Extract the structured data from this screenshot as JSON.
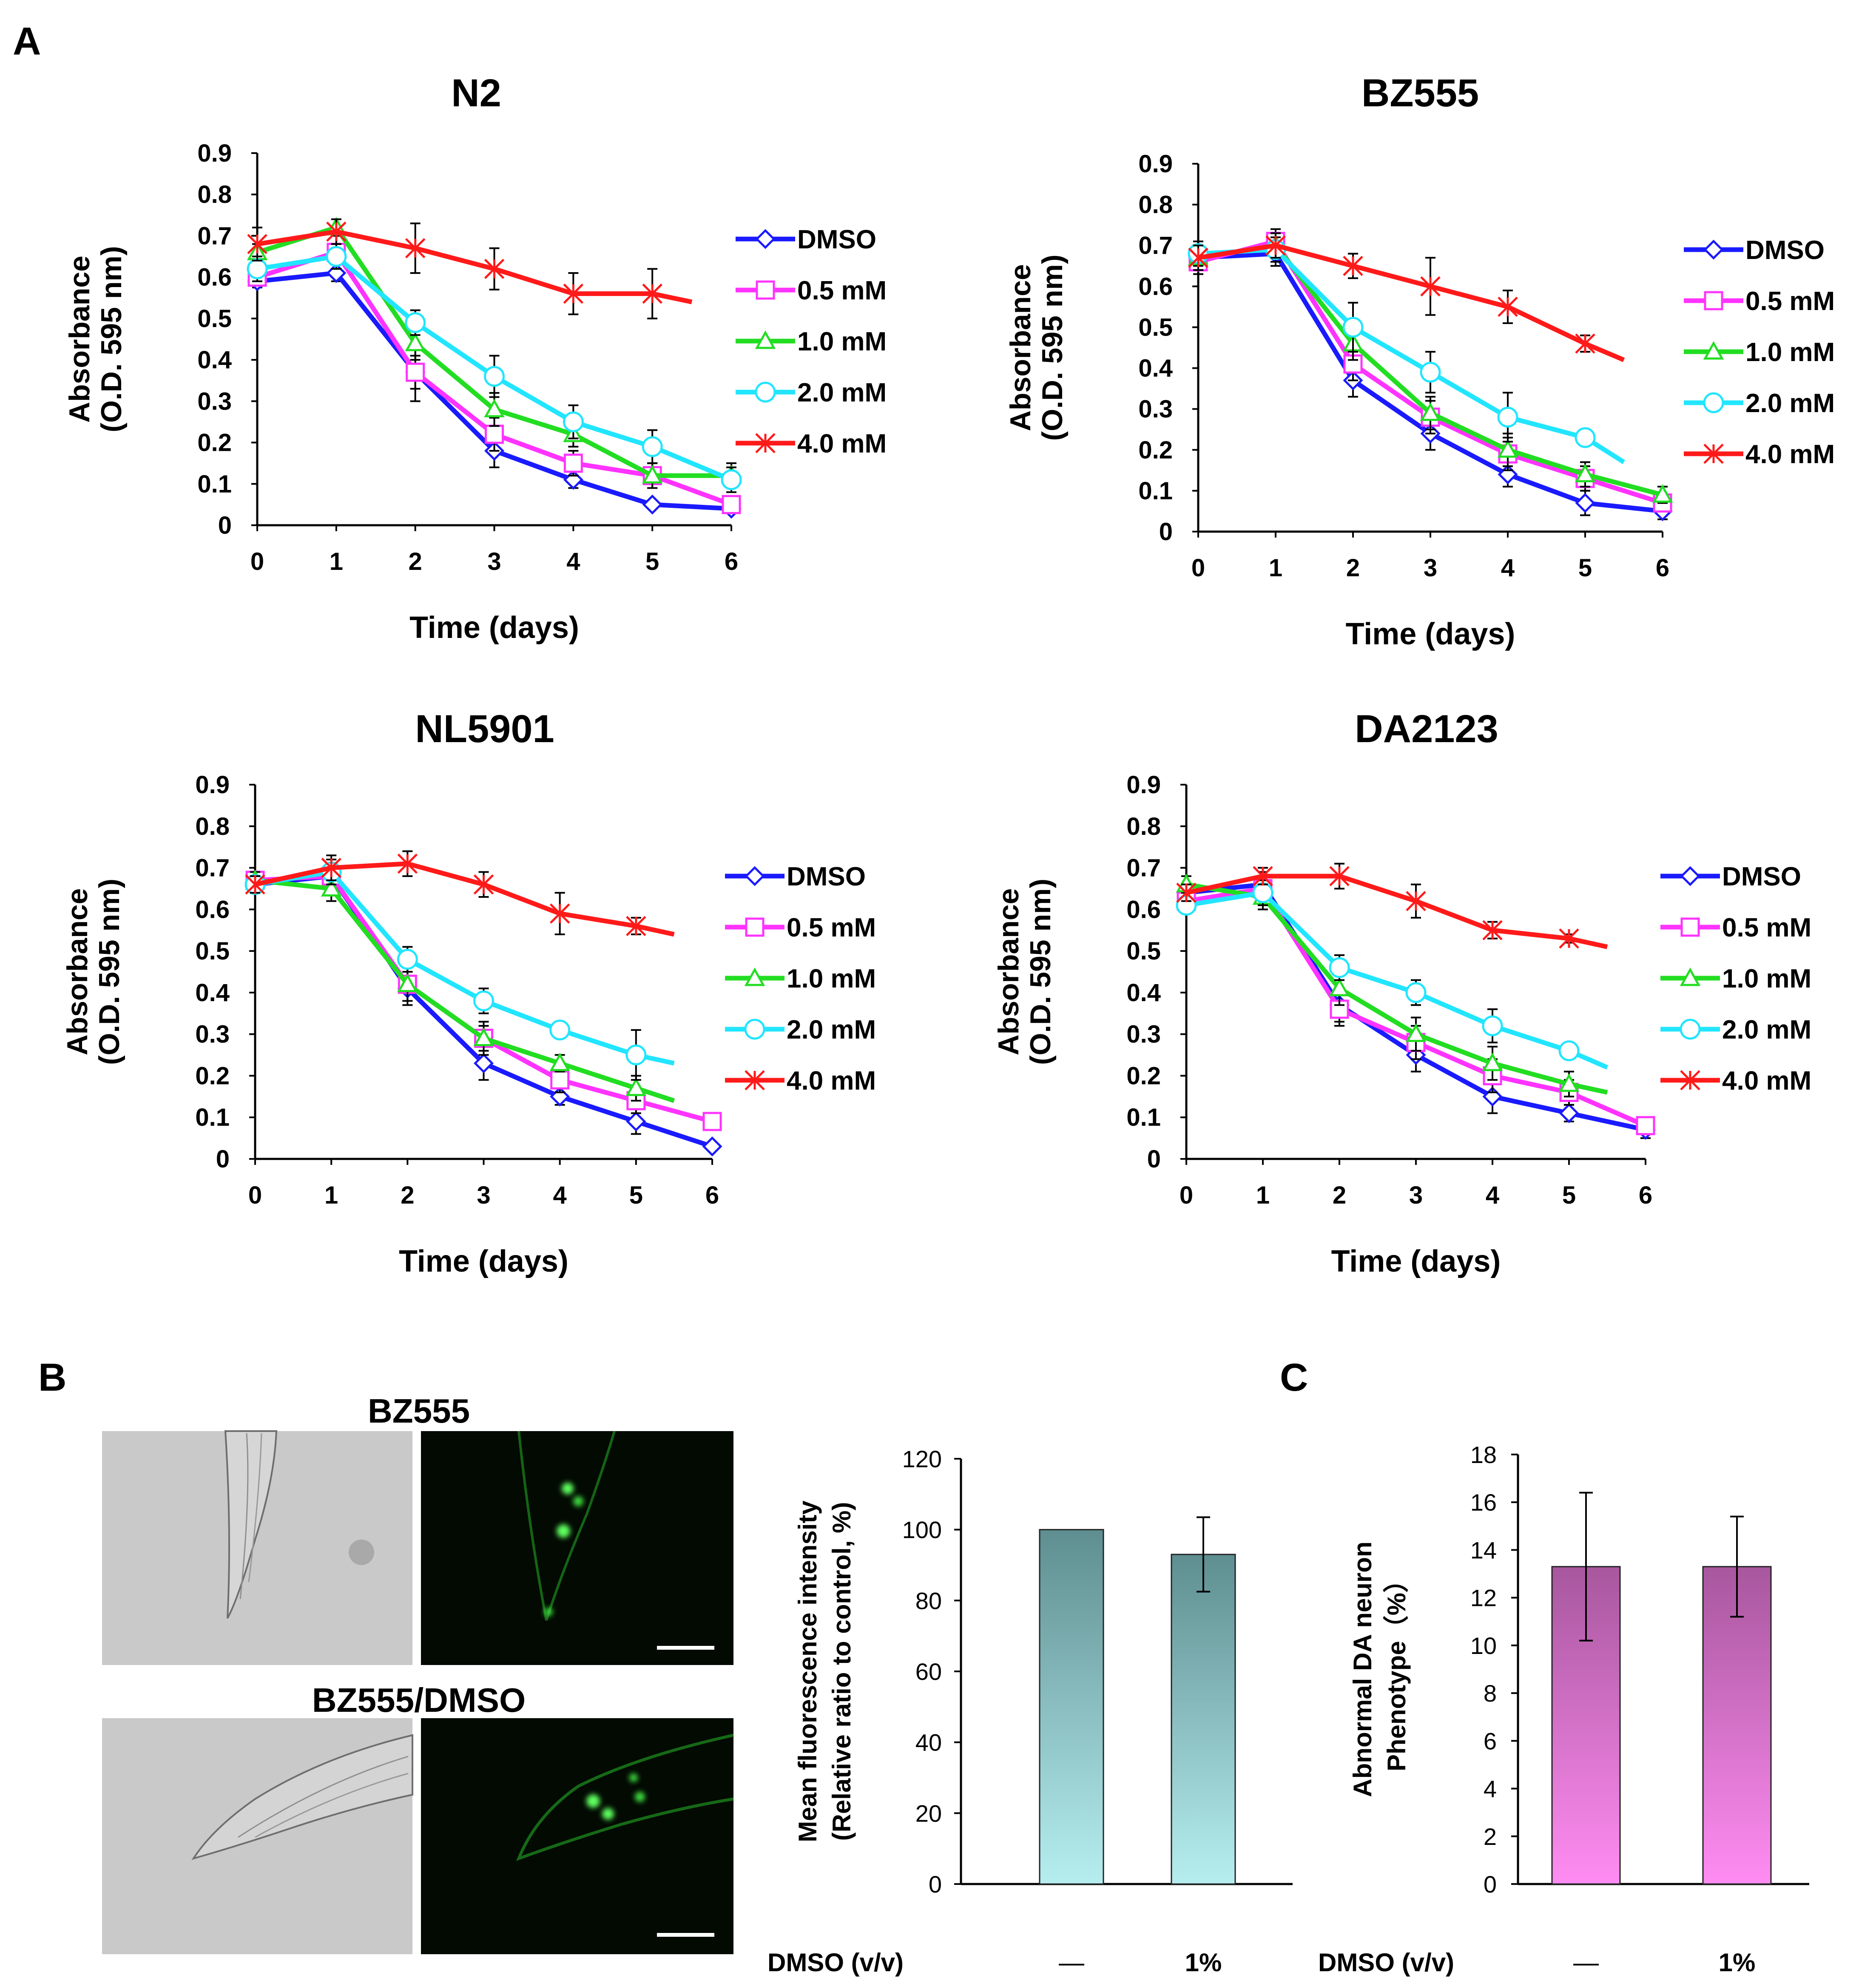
{
  "panel_labels": {
    "a": "A",
    "b": "B",
    "c": "C"
  },
  "colors": {
    "DMSO": "#1a1aff",
    "0.5 mM": "#ff33ff",
    "1.0 mM": "#22dd22",
    "2.0 mM": "#22e5ff",
    "4.0 mM": "#ff1a1a",
    "bar_b_top": "#5e8e90",
    "bar_b_bottom": "#b6eef0",
    "bar_c_top": "#a8579e",
    "bar_c_bottom": "#ff8cf2"
  },
  "chart_data": [
    {
      "id": "N2",
      "type": "line",
      "title": "N2",
      "xlabel": "Time (days)",
      "ylabel": [
        "Absorbance",
        "(O.D. 595 nm)"
      ],
      "ylim": [
        0,
        0.9
      ],
      "yticks": [
        "0",
        "0.1",
        "0.2",
        "0.3",
        "0.4",
        "0.5",
        "0.6",
        "0.7",
        "0.8",
        "0.9"
      ],
      "x": [
        0,
        1,
        2,
        3,
        4,
        5,
        6
      ],
      "series": [
        {
          "name": "DMSO",
          "marker": "diamond",
          "x": [
            0,
            1,
            2,
            3,
            4,
            5,
            6
          ],
          "values": [
            0.59,
            0.61,
            0.37,
            0.18,
            0.11,
            0.05,
            0.04
          ],
          "errors": [
            0.015,
            0.02,
            0.04,
            0.04,
            0.02,
            0.01,
            0.01
          ]
        },
        {
          "name": "0.5 mM",
          "marker": "square",
          "x": [
            0,
            1,
            2,
            3,
            4,
            5,
            6
          ],
          "values": [
            0.6,
            0.66,
            0.37,
            0.22,
            0.15,
            0.12,
            0.05
          ],
          "errors": [
            0.02,
            0.02,
            0.07,
            0.04,
            0.03,
            0.03,
            0.02
          ]
        },
        {
          "name": "1.0 mM",
          "marker": "triangle",
          "x": [
            0,
            1,
            2,
            3,
            4,
            5,
            6
          ],
          "values": [
            0.66,
            0.72,
            0.44,
            0.28,
            0.22,
            0.12,
            0.12
          ],
          "errors": [
            0.02,
            0.02,
            0.04,
            0.04,
            0.03,
            0.03,
            0.03
          ]
        },
        {
          "name": "2.0 mM",
          "marker": "circle",
          "x": [
            0,
            1,
            2,
            3,
            4,
            5,
            6
          ],
          "values": [
            0.62,
            0.65,
            0.49,
            0.36,
            0.25,
            0.19,
            0.11
          ],
          "errors": [
            0.03,
            0.03,
            0.03,
            0.05,
            0.04,
            0.04,
            0.03
          ]
        },
        {
          "name": "4.0 mM",
          "marker": "star",
          "x": [
            0,
            1,
            2,
            3,
            4,
            5,
            5.5
          ],
          "values": [
            0.68,
            0.71,
            0.67,
            0.62,
            0.56,
            0.56,
            0.54
          ],
          "errors": [
            0.04,
            0.03,
            0.06,
            0.05,
            0.05,
            0.06,
            null
          ]
        }
      ]
    },
    {
      "id": "BZ555",
      "type": "line",
      "title": "BZ555",
      "xlabel": "Time (days)",
      "ylabel": [
        "Absorbance",
        "(O.D. 595 nm)"
      ],
      "ylim": [
        0,
        0.9
      ],
      "yticks": [
        "0",
        "0.1",
        "0.2",
        "0.3",
        "0.4",
        "0.5",
        "0.6",
        "0.7",
        "0.8",
        "0.9"
      ],
      "x": [
        0,
        1,
        2,
        3,
        4,
        5,
        6
      ],
      "series": [
        {
          "name": "DMSO",
          "marker": "diamond",
          "x": [
            0,
            1,
            2,
            3,
            4,
            5,
            6
          ],
          "values": [
            0.67,
            0.68,
            0.37,
            0.24,
            0.14,
            0.07,
            0.05
          ],
          "errors": [
            0.03,
            0.03,
            0.04,
            0.04,
            0.03,
            0.03,
            0.02
          ]
        },
        {
          "name": "0.5 mM",
          "marker": "square",
          "x": [
            0,
            1,
            2,
            3,
            4,
            5,
            6
          ],
          "values": [
            0.66,
            0.71,
            0.41,
            0.28,
            0.19,
            0.13,
            0.07
          ],
          "errors": [
            0.03,
            0.03,
            0.04,
            0.04,
            0.04,
            0.03,
            0.02
          ]
        },
        {
          "name": "1.0 mM",
          "marker": "triangle",
          "x": [
            0,
            1,
            2,
            3,
            4,
            5,
            6
          ],
          "values": [
            0.67,
            0.7,
            0.46,
            0.29,
            0.2,
            0.14,
            0.09
          ],
          "errors": [
            0.03,
            0.03,
            0.04,
            0.04,
            0.04,
            0.03,
            0.02
          ]
        },
        {
          "name": "2.0 mM",
          "marker": "circle",
          "x": [
            0,
            1,
            2,
            3,
            4,
            5,
            5.5
          ],
          "values": [
            0.68,
            0.69,
            0.5,
            0.39,
            0.28,
            0.23,
            0.17
          ],
          "errors": [
            0.03,
            0.03,
            0.06,
            0.05,
            0.06,
            0.02,
            null
          ]
        },
        {
          "name": "4.0 mM",
          "marker": "star",
          "x": [
            0,
            1,
            2,
            3,
            4,
            5,
            5.5
          ],
          "values": [
            0.67,
            0.7,
            0.65,
            0.6,
            0.55,
            0.46,
            0.42
          ],
          "errors": [
            0.03,
            0.03,
            0.03,
            0.07,
            0.04,
            0.02,
            null
          ]
        }
      ]
    },
    {
      "id": "NL5901",
      "type": "line",
      "title": "NL5901",
      "xlabel": "Time (days)",
      "ylabel": [
        "Absorbance",
        "(O.D. 595 nm)"
      ],
      "ylim": [
        0,
        0.9
      ],
      "yticks": [
        "0",
        "0.1",
        "0.2",
        "0.3",
        "0.4",
        "0.5",
        "0.6",
        "0.7",
        "0.8",
        "0.9"
      ],
      "x": [
        0,
        1,
        2,
        3,
        4,
        5,
        6
      ],
      "series": [
        {
          "name": "DMSO",
          "marker": "diamond",
          "x": [
            0,
            1,
            2,
            3,
            4,
            5,
            6
          ],
          "values": [
            0.66,
            0.68,
            0.41,
            0.23,
            0.15,
            0.09,
            0.03
          ],
          "errors": [
            0.02,
            0.03,
            0.04,
            0.04,
            0.02,
            0.03,
            0.01
          ]
        },
        {
          "name": "0.5 mM",
          "marker": "square",
          "x": [
            0,
            1,
            2,
            3,
            4,
            5,
            6
          ],
          "values": [
            0.67,
            0.68,
            0.42,
            0.29,
            0.19,
            0.14,
            0.09
          ],
          "errors": [
            0.02,
            0.03,
            0.04,
            0.04,
            0.03,
            0.03,
            0.02
          ]
        },
        {
          "name": "1.0 mM",
          "marker": "triangle",
          "x": [
            0,
            1,
            2,
            3,
            4,
            5,
            5.5
          ],
          "values": [
            0.67,
            0.65,
            0.42,
            0.29,
            0.23,
            0.17,
            0.14
          ],
          "errors": [
            0.02,
            0.03,
            0.04,
            0.03,
            0.02,
            0.03,
            null
          ]
        },
        {
          "name": "2.0 mM",
          "marker": "circle",
          "x": [
            0,
            1,
            2,
            3,
            4,
            5,
            5.5
          ],
          "values": [
            0.66,
            0.69,
            0.48,
            0.38,
            0.31,
            0.25,
            0.23
          ],
          "errors": [
            0.02,
            0.03,
            0.03,
            0.03,
            0.02,
            0.06,
            null
          ]
        },
        {
          "name": "4.0 mM",
          "marker": "star",
          "x": [
            0,
            1,
            2,
            3,
            4,
            5,
            5.5
          ],
          "values": [
            0.66,
            0.7,
            0.71,
            0.66,
            0.59,
            0.56,
            0.54
          ],
          "errors": [
            0.02,
            0.03,
            0.03,
            0.03,
            0.05,
            0.02,
            null
          ]
        }
      ]
    },
    {
      "id": "DA2123",
      "type": "line",
      "title": "DA2123",
      "xlabel": "Time (days)",
      "ylabel": [
        "Absorbance",
        "(O.D. 595 nm)"
      ],
      "ylim": [
        0,
        0.9
      ],
      "yticks": [
        "0",
        "0.1",
        "0.2",
        "0.3",
        "0.4",
        "0.5",
        "0.6",
        "0.7",
        "0.8",
        "0.9"
      ],
      "x": [
        0,
        1,
        2,
        3,
        4,
        5,
        6
      ],
      "series": [
        {
          "name": "DMSO",
          "marker": "diamond",
          "x": [
            0,
            1,
            2,
            3,
            4,
            5,
            6
          ],
          "values": [
            0.64,
            0.66,
            0.37,
            0.25,
            0.15,
            0.11,
            0.07
          ],
          "errors": [
            0.02,
            0.03,
            0.04,
            0.04,
            0.04,
            0.02,
            0.02
          ]
        },
        {
          "name": "0.5 mM",
          "marker": "square",
          "x": [
            0,
            1,
            2,
            3,
            4,
            5,
            6
          ],
          "values": [
            0.62,
            0.65,
            0.36,
            0.28,
            0.2,
            0.16,
            0.08
          ],
          "errors": [
            0.02,
            0.03,
            0.04,
            0.04,
            0.04,
            0.03,
            0.02
          ]
        },
        {
          "name": "1.0 mM",
          "marker": "triangle",
          "x": [
            0,
            1,
            2,
            3,
            4,
            5,
            5.5
          ],
          "values": [
            0.66,
            0.63,
            0.41,
            0.3,
            0.23,
            0.18,
            0.16
          ],
          "errors": [
            0.02,
            0.03,
            0.04,
            0.04,
            0.04,
            0.03,
            null
          ]
        },
        {
          "name": "2.0 mM",
          "marker": "circle",
          "x": [
            0,
            1,
            2,
            3,
            4,
            5,
            5.5
          ],
          "values": [
            0.61,
            0.64,
            0.46,
            0.4,
            0.32,
            0.26,
            0.22
          ],
          "errors": [
            0.02,
            0.03,
            0.03,
            0.03,
            0.04,
            0.02,
            null
          ]
        },
        {
          "name": "4.0 mM",
          "marker": "star",
          "x": [
            0,
            1,
            2,
            3,
            4,
            5,
            5.5
          ],
          "values": [
            0.64,
            0.68,
            0.68,
            0.62,
            0.55,
            0.53,
            0.51
          ],
          "errors": [
            0.02,
            0.02,
            0.03,
            0.04,
            0.02,
            0.01,
            null
          ]
        }
      ]
    },
    {
      "id": "fluorescence",
      "type": "bar",
      "title": "",
      "ylabel": [
        "Mean fluorescence intensity",
        "(Relative ratio to control, %)"
      ],
      "ylim": [
        0,
        120
      ],
      "yticks": [
        "0",
        "20",
        "40",
        "60",
        "80",
        "100",
        "120"
      ],
      "xrow_label": "DMSO (v/v)",
      "categories": [
        "—",
        "1%"
      ],
      "values": [
        100,
        93
      ],
      "errors": [
        0,
        10.5
      ]
    },
    {
      "id": "abnormal",
      "type": "bar",
      "title": "",
      "ylabel": [
        "Abnormal DA neuron",
        "Phenotype（%）"
      ],
      "ylim": [
        0,
        18
      ],
      "yticks": [
        "0",
        "2",
        "4",
        "6",
        "8",
        "10",
        "12",
        "14",
        "16",
        "18"
      ],
      "xrow_label": "DMSO (v/v)",
      "categories": [
        "—",
        "1%"
      ],
      "values": [
        13.3,
        13.3
      ],
      "errors": [
        3.1,
        2.1
      ]
    }
  ],
  "micrographs": {
    "row1_label": "BZ555",
    "row2_label": "BZ555/DMSO"
  }
}
